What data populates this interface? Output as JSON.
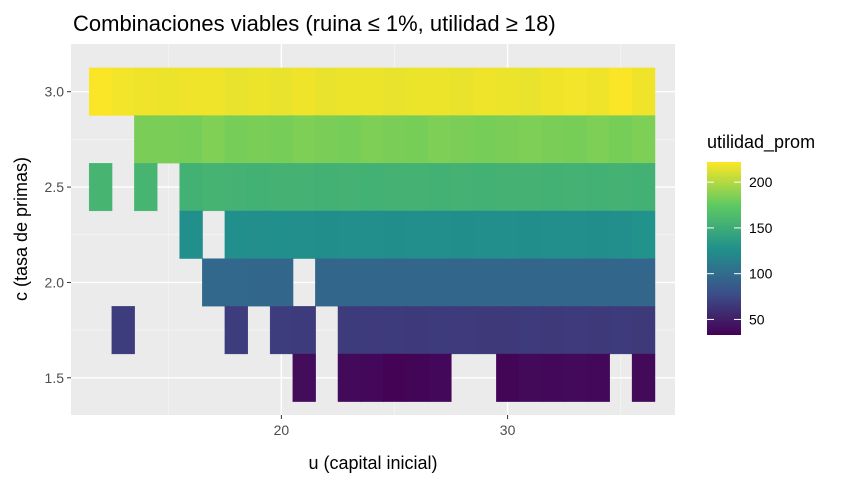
{
  "chart_data": {
    "type": "heatmap",
    "title": "Combinaciones viables (ruina ≤ 1%, utilidad ≥ 18)",
    "xlabel": "u (capital inicial)",
    "ylabel": "c (tasa de primas)",
    "xlim": [
      10.7,
      37.4
    ],
    "ylim": [
      1.305,
      3.25
    ],
    "x_ticks": [
      20,
      30
    ],
    "y_ticks": [
      1.5,
      2.0,
      2.5,
      3.0
    ],
    "y_tick_labels": [
      "1.5",
      "2.0",
      "2.5",
      "3.0"
    ],
    "tile_width": 1,
    "tile_height": 0.25,
    "grid": true,
    "legend": {
      "title": "utilidad_prom",
      "position": "right",
      "range": [
        33,
        222
      ],
      "breaks": [
        50,
        100,
        150,
        200
      ],
      "colormap": "viridis"
    },
    "rows": [
      {
        "c": 3.0,
        "values": [
          {
            "u": 12,
            "v": 221
          },
          {
            "u": 13,
            "v": 219
          },
          {
            "u": 14,
            "v": 218
          },
          {
            "u": 15,
            "v": 217
          },
          {
            "u": 16,
            "v": 218
          },
          {
            "u": 17,
            "v": 218
          },
          {
            "u": 18,
            "v": 216
          },
          {
            "u": 19,
            "v": 217
          },
          {
            "u": 20,
            "v": 216
          },
          {
            "u": 21,
            "v": 218
          },
          {
            "u": 22,
            "v": 216
          },
          {
            "u": 23,
            "v": 217
          },
          {
            "u": 24,
            "v": 217
          },
          {
            "u": 25,
            "v": 216
          },
          {
            "u": 26,
            "v": 217
          },
          {
            "u": 27,
            "v": 217
          },
          {
            "u": 28,
            "v": 216
          },
          {
            "u": 29,
            "v": 218
          },
          {
            "u": 30,
            "v": 217
          },
          {
            "u": 31,
            "v": 216
          },
          {
            "u": 32,
            "v": 218
          },
          {
            "u": 33,
            "v": 219
          },
          {
            "u": 34,
            "v": 218
          },
          {
            "u": 35,
            "v": 221
          },
          {
            "u": 36,
            "v": 218
          }
        ]
      },
      {
        "c": 2.75,
        "values": [
          {
            "u": 14,
            "v": 183
          },
          {
            "u": 15,
            "v": 183
          },
          {
            "u": 16,
            "v": 182
          },
          {
            "u": 17,
            "v": 185
          },
          {
            "u": 18,
            "v": 182
          },
          {
            "u": 19,
            "v": 183
          },
          {
            "u": 20,
            "v": 182
          },
          {
            "u": 21,
            "v": 184
          },
          {
            "u": 22,
            "v": 183
          },
          {
            "u": 23,
            "v": 182
          },
          {
            "u": 24,
            "v": 184
          },
          {
            "u": 25,
            "v": 183
          },
          {
            "u": 26,
            "v": 182
          },
          {
            "u": 27,
            "v": 184
          },
          {
            "u": 28,
            "v": 183
          },
          {
            "u": 29,
            "v": 182
          },
          {
            "u": 30,
            "v": 183
          },
          {
            "u": 31,
            "v": 184
          },
          {
            "u": 32,
            "v": 183
          },
          {
            "u": 33,
            "v": 182
          },
          {
            "u": 34,
            "v": 184
          },
          {
            "u": 35,
            "v": 182
          },
          {
            "u": 36,
            "v": 184
          }
        ]
      },
      {
        "c": 2.5,
        "values": [
          {
            "u": 12,
            "v": 157
          },
          {
            "u": 14,
            "v": 157
          },
          {
            "u": 16,
            "v": 154
          },
          {
            "u": 17,
            "v": 156
          },
          {
            "u": 18,
            "v": 155
          },
          {
            "u": 19,
            "v": 154
          },
          {
            "u": 20,
            "v": 155
          },
          {
            "u": 21,
            "v": 155
          },
          {
            "u": 22,
            "v": 154
          },
          {
            "u": 23,
            "v": 155
          },
          {
            "u": 24,
            "v": 154
          },
          {
            "u": 25,
            "v": 155
          },
          {
            "u": 26,
            "v": 155
          },
          {
            "u": 27,
            "v": 154
          },
          {
            "u": 28,
            "v": 155
          },
          {
            "u": 29,
            "v": 154
          },
          {
            "u": 30,
            "v": 155
          },
          {
            "u": 31,
            "v": 155
          },
          {
            "u": 32,
            "v": 154
          },
          {
            "u": 33,
            "v": 155
          },
          {
            "u": 34,
            "v": 154
          },
          {
            "u": 35,
            "v": 155
          },
          {
            "u": 36,
            "v": 154
          }
        ]
      },
      {
        "c": 2.25,
        "values": [
          {
            "u": 16,
            "v": 127
          },
          {
            "u": 18,
            "v": 127
          },
          {
            "u": 19,
            "v": 126
          },
          {
            "u": 20,
            "v": 127
          },
          {
            "u": 21,
            "v": 126
          },
          {
            "u": 22,
            "v": 125
          },
          {
            "u": 23,
            "v": 126
          },
          {
            "u": 24,
            "v": 126
          },
          {
            "u": 25,
            "v": 125
          },
          {
            "u": 26,
            "v": 126
          },
          {
            "u": 27,
            "v": 126
          },
          {
            "u": 28,
            "v": 125
          },
          {
            "u": 29,
            "v": 126
          },
          {
            "u": 30,
            "v": 126
          },
          {
            "u": 31,
            "v": 125
          },
          {
            "u": 32,
            "v": 126
          },
          {
            "u": 33,
            "v": 126
          },
          {
            "u": 34,
            "v": 125
          },
          {
            "u": 35,
            "v": 126
          },
          {
            "u": 36,
            "v": 128
          }
        ]
      },
      {
        "c": 2.0,
        "values": [
          {
            "u": 17,
            "v": 97
          },
          {
            "u": 18,
            "v": 97
          },
          {
            "u": 19,
            "v": 96
          },
          {
            "u": 20,
            "v": 96
          },
          {
            "u": 22,
            "v": 96
          },
          {
            "u": 23,
            "v": 96
          },
          {
            "u": 24,
            "v": 96
          },
          {
            "u": 25,
            "v": 96
          },
          {
            "u": 26,
            "v": 96
          },
          {
            "u": 27,
            "v": 96
          },
          {
            "u": 28,
            "v": 96
          },
          {
            "u": 29,
            "v": 96
          },
          {
            "u": 30,
            "v": 96
          },
          {
            "u": 31,
            "v": 96
          },
          {
            "u": 32,
            "v": 96
          },
          {
            "u": 33,
            "v": 96
          },
          {
            "u": 34,
            "v": 96
          },
          {
            "u": 35,
            "v": 96
          },
          {
            "u": 36,
            "v": 96
          }
        ]
      },
      {
        "c": 1.75,
        "values": [
          {
            "u": 13,
            "v": 68
          },
          {
            "u": 18,
            "v": 68
          },
          {
            "u": 20,
            "v": 68
          },
          {
            "u": 21,
            "v": 67
          },
          {
            "u": 23,
            "v": 67
          },
          {
            "u": 24,
            "v": 67
          },
          {
            "u": 25,
            "v": 67
          },
          {
            "u": 26,
            "v": 66
          },
          {
            "u": 27,
            "v": 67
          },
          {
            "u": 28,
            "v": 67
          },
          {
            "u": 29,
            "v": 66
          },
          {
            "u": 30,
            "v": 66
          },
          {
            "u": 31,
            "v": 67
          },
          {
            "u": 32,
            "v": 66
          },
          {
            "u": 33,
            "v": 67
          },
          {
            "u": 34,
            "v": 66
          },
          {
            "u": 35,
            "v": 67
          },
          {
            "u": 36,
            "v": 66
          }
        ]
      },
      {
        "c": 1.5,
        "values": [
          {
            "u": 21,
            "v": 40
          },
          {
            "u": 23,
            "v": 38
          },
          {
            "u": 24,
            "v": 37
          },
          {
            "u": 25,
            "v": 34
          },
          {
            "u": 26,
            "v": 36
          },
          {
            "u": 27,
            "v": 37
          },
          {
            "u": 30,
            "v": 36
          },
          {
            "u": 31,
            "v": 38
          },
          {
            "u": 32,
            "v": 37
          },
          {
            "u": 33,
            "v": 38
          },
          {
            "u": 34,
            "v": 37
          },
          {
            "u": 36,
            "v": 38
          }
        ]
      }
    ]
  }
}
